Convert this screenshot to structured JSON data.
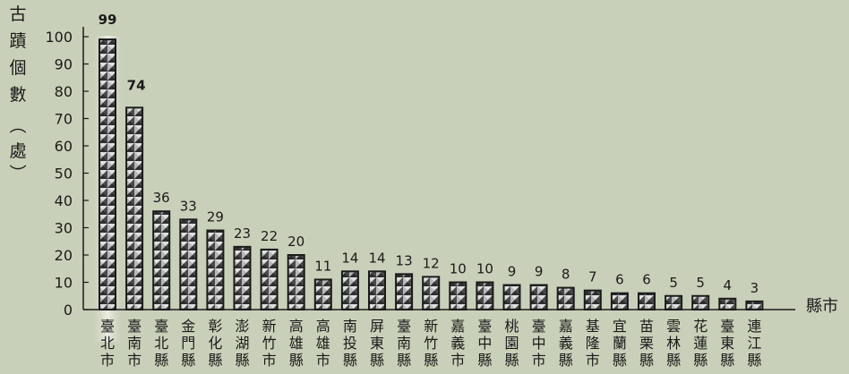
{
  "chart_data": {
    "type": "bar",
    "title": "",
    "ylabel": "古蹟個數（處）",
    "xlabel": "縣市",
    "ylim": [
      0,
      100
    ],
    "yticks": [
      0,
      10,
      20,
      30,
      40,
      50,
      60,
      70,
      80,
      90,
      100
    ],
    "categories": [
      "臺北市",
      "臺南市",
      "臺北縣",
      "金門縣",
      "彰化縣",
      "澎湖縣",
      "新竹市",
      "高雄縣",
      "高雄市",
      "南投縣",
      "屏東縣",
      "臺南縣",
      "新竹縣",
      "嘉義市",
      "臺中縣",
      "桃園縣",
      "臺中市",
      "嘉義縣",
      "基隆市",
      "宜蘭縣",
      "苗栗縣",
      "雲林縣",
      "花蓮縣",
      "臺東縣",
      "連江縣"
    ],
    "values": [
      99,
      74,
      36,
      33,
      29,
      23,
      22,
      20,
      11,
      14,
      14,
      13,
      12,
      10,
      10,
      9,
      9,
      8,
      7,
      6,
      6,
      5,
      5,
      4,
      3
    ],
    "grid": false,
    "colors": {
      "background": "#c9d0b9",
      "bar": "#5a5a5a",
      "bar_light": "#d8d8d8",
      "axis": "#1a1a1a"
    }
  }
}
